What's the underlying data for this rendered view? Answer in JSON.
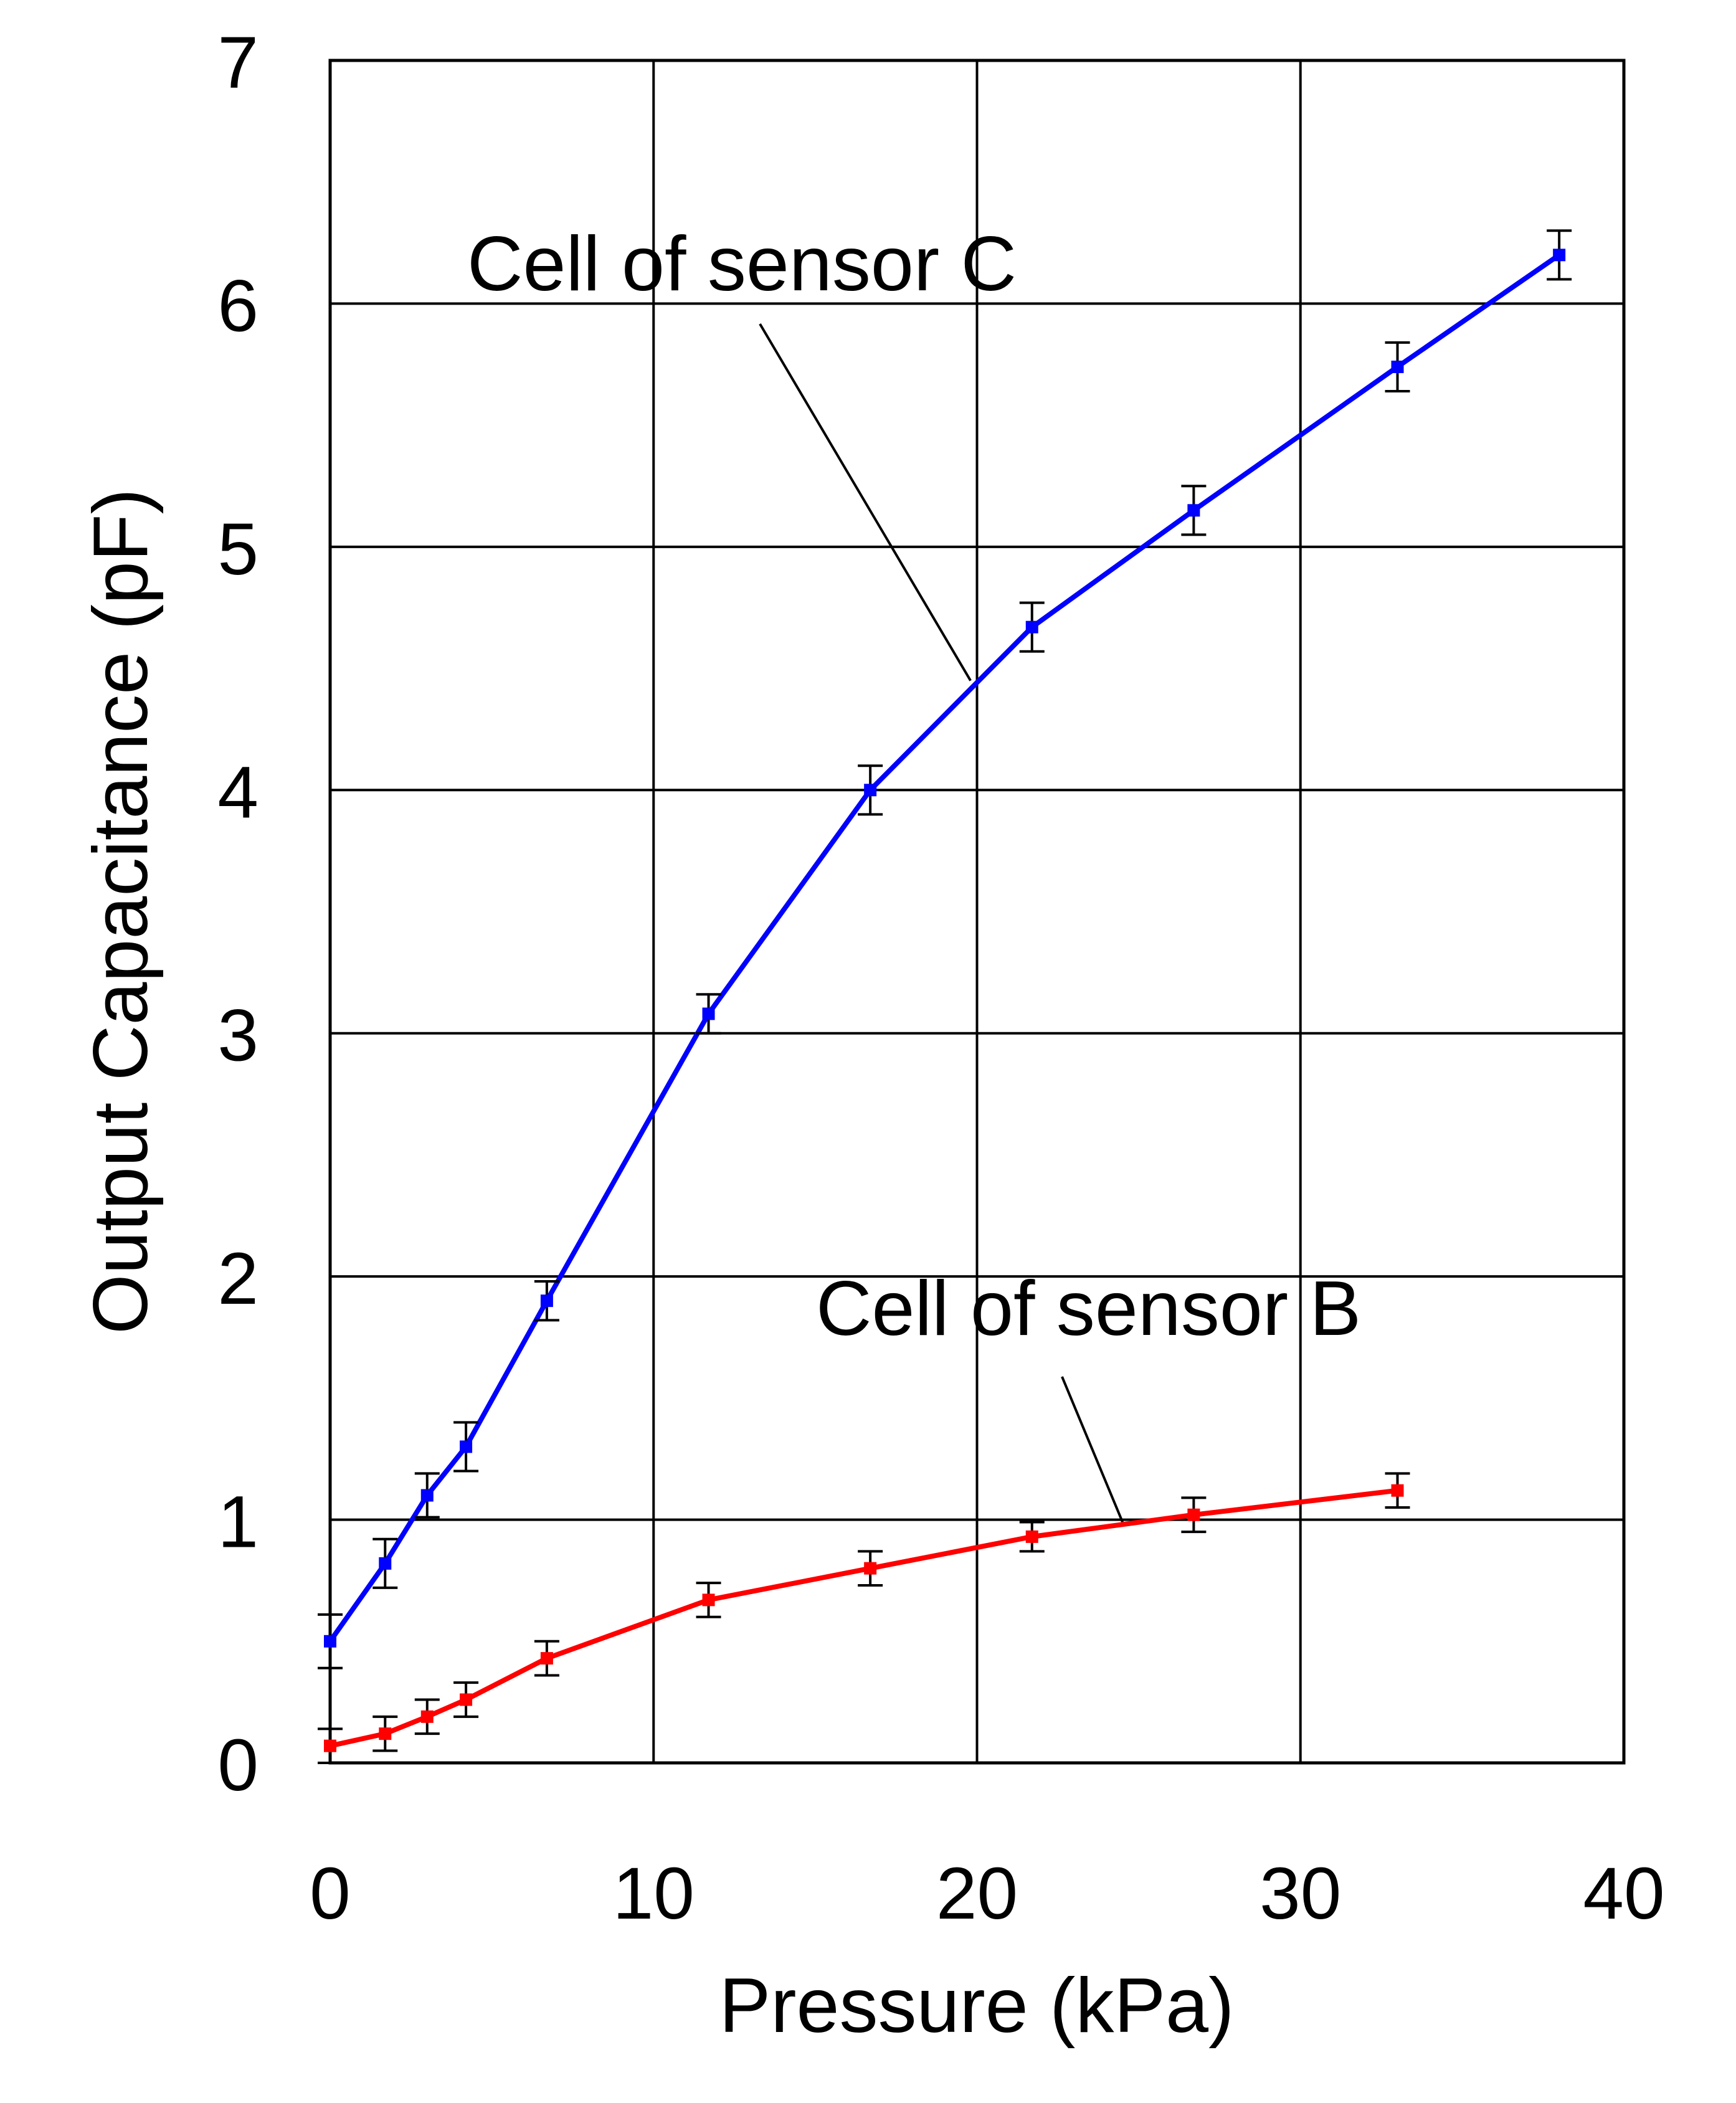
{
  "chart_data": {
    "type": "line",
    "title": "",
    "xlabel": "Pressure (kPa)",
    "ylabel": "Output Capacitance (pF)",
    "xlim": [
      0,
      40
    ],
    "ylim": [
      0,
      7
    ],
    "xticks": [
      0,
      10,
      20,
      30,
      40
    ],
    "yticks": [
      0,
      1,
      2,
      3,
      4,
      5,
      6,
      7
    ],
    "xtick_labels": [
      "0",
      "10",
      "20",
      "30",
      "40"
    ],
    "ytick_labels": [
      "0",
      "1",
      "2",
      "3",
      "4",
      "5",
      "6",
      "7"
    ],
    "grid": true,
    "series": [
      {
        "name": "Cell of sensor C",
        "color": "#0000ff",
        "x": [
          0,
          1.7,
          3,
          4.2,
          6.7,
          11.7,
          16.7,
          21.7,
          26.7,
          33,
          38
        ],
        "y": [
          0.5,
          0.82,
          1.1,
          1.3,
          1.9,
          3.08,
          4.0,
          4.67,
          5.15,
          5.74,
          6.2
        ],
        "error": [
          0.11,
          0.1,
          0.09,
          0.1,
          0.08,
          0.08,
          0.1,
          0.1,
          0.1,
          0.1,
          0.1
        ]
      },
      {
        "name": "Cell of sensor B",
        "color": "#ff0000",
        "x": [
          0,
          1.7,
          3,
          4.2,
          6.7,
          11.7,
          16.7,
          21.7,
          26.7,
          33
        ],
        "y": [
          0.07,
          0.12,
          0.19,
          0.26,
          0.43,
          0.67,
          0.8,
          0.93,
          1.02,
          1.12
        ],
        "error": [
          0.07,
          0.07,
          0.07,
          0.07,
          0.07,
          0.07,
          0.07,
          0.06,
          0.07,
          0.07
        ]
      }
    ],
    "annotations": [
      {
        "text": "Cell of sensor C",
        "series": 0,
        "target": [
          19.8,
          4.45
        ]
      },
      {
        "text": "Cell of sensor B",
        "series": 1,
        "target": [
          24.5,
          0.99
        ]
      }
    ]
  }
}
